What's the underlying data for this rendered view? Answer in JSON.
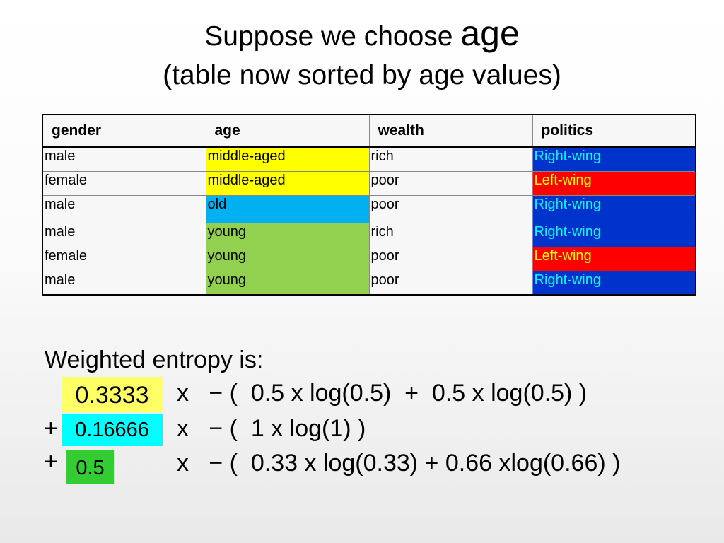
{
  "title": {
    "line1_prefix": "Suppose we choose ",
    "line1_attr": "age",
    "line2": "(table now sorted by age values)"
  },
  "table": {
    "headers": [
      "gender",
      "age",
      "wealth",
      "politics"
    ],
    "rows": [
      [
        "male",
        "middle-aged",
        "rich",
        "Right-wing"
      ],
      [
        "female",
        "middle-aged",
        "poor",
        "Left-wing"
      ],
      [
        "male",
        "old",
        "poor",
        "Right-wing"
      ],
      [
        "male",
        "young",
        "rich",
        "Right-wing"
      ],
      [
        "female",
        "young",
        "poor",
        "Left-wing"
      ],
      [
        "male",
        "young",
        "poor",
        "Right-wing"
      ]
    ],
    "colors": {
      "middle-aged": "#ffff00",
      "old": "#00b0f0",
      "young": "#92d050",
      "Right-wing": "#0033cc",
      "Left-wing": "#ff0000"
    }
  },
  "entropy": {
    "heading": "Weighted entropy is:",
    "plus": "+",
    "terms": [
      {
        "weight": "0.3333",
        "expr": "x   − (  0.5 x log(0.5)  +  0.5 x log(0.5) )"
      },
      {
        "weight": "0.16666",
        "expr": "x   − (  1 x log(1) )"
      },
      {
        "weight": "0.5",
        "expr": "x   − (  0.33 x log(0.33) + 0.66 xlog(0.66) )"
      }
    ]
  }
}
